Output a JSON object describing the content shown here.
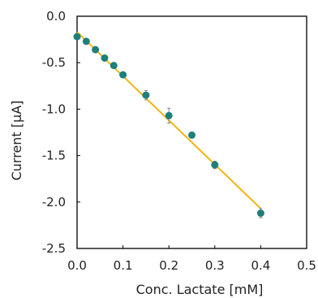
{
  "chart_data": {
    "type": "scatter",
    "title": "",
    "xlabel": "Conc. Lactate [mM]",
    "ylabel": "Current  [μA]",
    "xlim": [
      0.0,
      0.5
    ],
    "ylim": [
      -2.5,
      0.0
    ],
    "x_ticks": [
      "0.0",
      "0.1",
      "0.2",
      "0.3",
      "0.4",
      "0.5"
    ],
    "y_ticks": [
      "0.0",
      "-0.5",
      "-1.0",
      "-1.5",
      "-2.0",
      "-2.5"
    ],
    "grid": false,
    "legend": "none",
    "series": [
      {
        "points": [
          {
            "x": 0.0,
            "y": -0.22,
            "err": 0.02
          },
          {
            "x": 0.02,
            "y": -0.27,
            "err": 0.02
          },
          {
            "x": 0.04,
            "y": -0.36,
            "err": 0.02
          },
          {
            "x": 0.06,
            "y": -0.45,
            "err": 0.03
          },
          {
            "x": 0.08,
            "y": -0.53,
            "err": 0.03
          },
          {
            "x": 0.1,
            "y": -0.63,
            "err": 0.03
          },
          {
            "x": 0.15,
            "y": -0.85,
            "err": 0.05
          },
          {
            "x": 0.2,
            "y": -1.07,
            "err": 0.08
          },
          {
            "x": 0.25,
            "y": -1.28,
            "err": 0.03
          },
          {
            "x": 0.3,
            "y": -1.6,
            "err": 0.04
          },
          {
            "x": 0.4,
            "y": -2.12,
            "err": 0.05
          }
        ]
      }
    ],
    "fit_line": {
      "x": [
        0.0,
        0.4
      ],
      "y": [
        -0.17,
        -2.07
      ]
    },
    "colors": {
      "marker": "#1f7f7a",
      "fit": "#f2b515",
      "axis": "#000000",
      "error_bar": "#888888"
    }
  }
}
